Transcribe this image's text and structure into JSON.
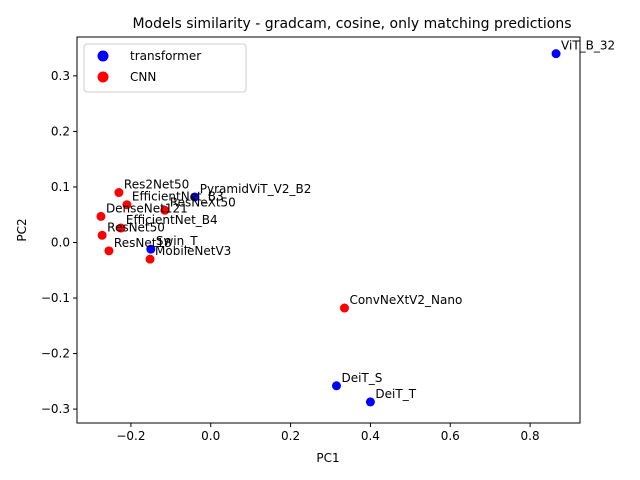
{
  "chart_data": {
    "type": "scatter",
    "title": "Models similarity - gradcam, cosine, only matching predictions",
    "xlabel": "PC1",
    "ylabel": "PC2",
    "xlim": [
      -0.335,
      0.925
    ],
    "ylim": [
      -0.325,
      0.37
    ],
    "xticks": [
      {
        "value": -0.2,
        "label": "−0.2"
      },
      {
        "value": 0.0,
        "label": "0.0"
      },
      {
        "value": 0.2,
        "label": "0.2"
      },
      {
        "value": 0.4,
        "label": "0.4"
      },
      {
        "value": 0.6,
        "label": "0.6"
      },
      {
        "value": 0.8,
        "label": "0.8"
      }
    ],
    "yticks": [
      {
        "value": -0.3,
        "label": "−0.3"
      },
      {
        "value": -0.2,
        "label": "−0.2"
      },
      {
        "value": -0.1,
        "label": "−0.1"
      },
      {
        "value": 0.0,
        "label": "0.0"
      },
      {
        "value": 0.1,
        "label": "0.1"
      },
      {
        "value": 0.2,
        "label": "0.2"
      },
      {
        "value": 0.3,
        "label": "0.3"
      }
    ],
    "grid": false,
    "legend_position": "top-left",
    "series": [
      {
        "name": "transformer",
        "color": "#0000ff",
        "points": [
          {
            "label": "ViT_B_32",
            "x": 0.865,
            "y": 0.34
          },
          {
            "label": "PyramidViT_V2_B2",
            "x": -0.04,
            "y": 0.082
          },
          {
            "label": "Swin_T",
            "x": -0.15,
            "y": -0.012
          },
          {
            "label": "DeiT_S",
            "x": 0.315,
            "y": -0.258
          },
          {
            "label": "DeiT_T",
            "x": 0.4,
            "y": -0.287
          }
        ]
      },
      {
        "name": "CNN",
        "color": "#ff0000",
        "points": [
          {
            "label": "Res2Net50",
            "x": -0.23,
            "y": 0.09
          },
          {
            "label": "EfficientNet_B3",
            "x": -0.21,
            "y": 0.068
          },
          {
            "label": "ResNeXt50",
            "x": -0.115,
            "y": 0.058
          },
          {
            "label": "DenseNet121",
            "x": -0.275,
            "y": 0.047
          },
          {
            "label": "EfficientNet_B4",
            "x": -0.225,
            "y": 0.026
          },
          {
            "label": "ResNet50",
            "x": -0.272,
            "y": 0.013
          },
          {
            "label": "ResNet18",
            "x": -0.255,
            "y": -0.015
          },
          {
            "label": "MobileNetV3",
            "x": -0.152,
            "y": -0.03
          },
          {
            "label": "ConvNeXtV2_Nano",
            "x": 0.335,
            "y": -0.118
          }
        ]
      }
    ]
  }
}
